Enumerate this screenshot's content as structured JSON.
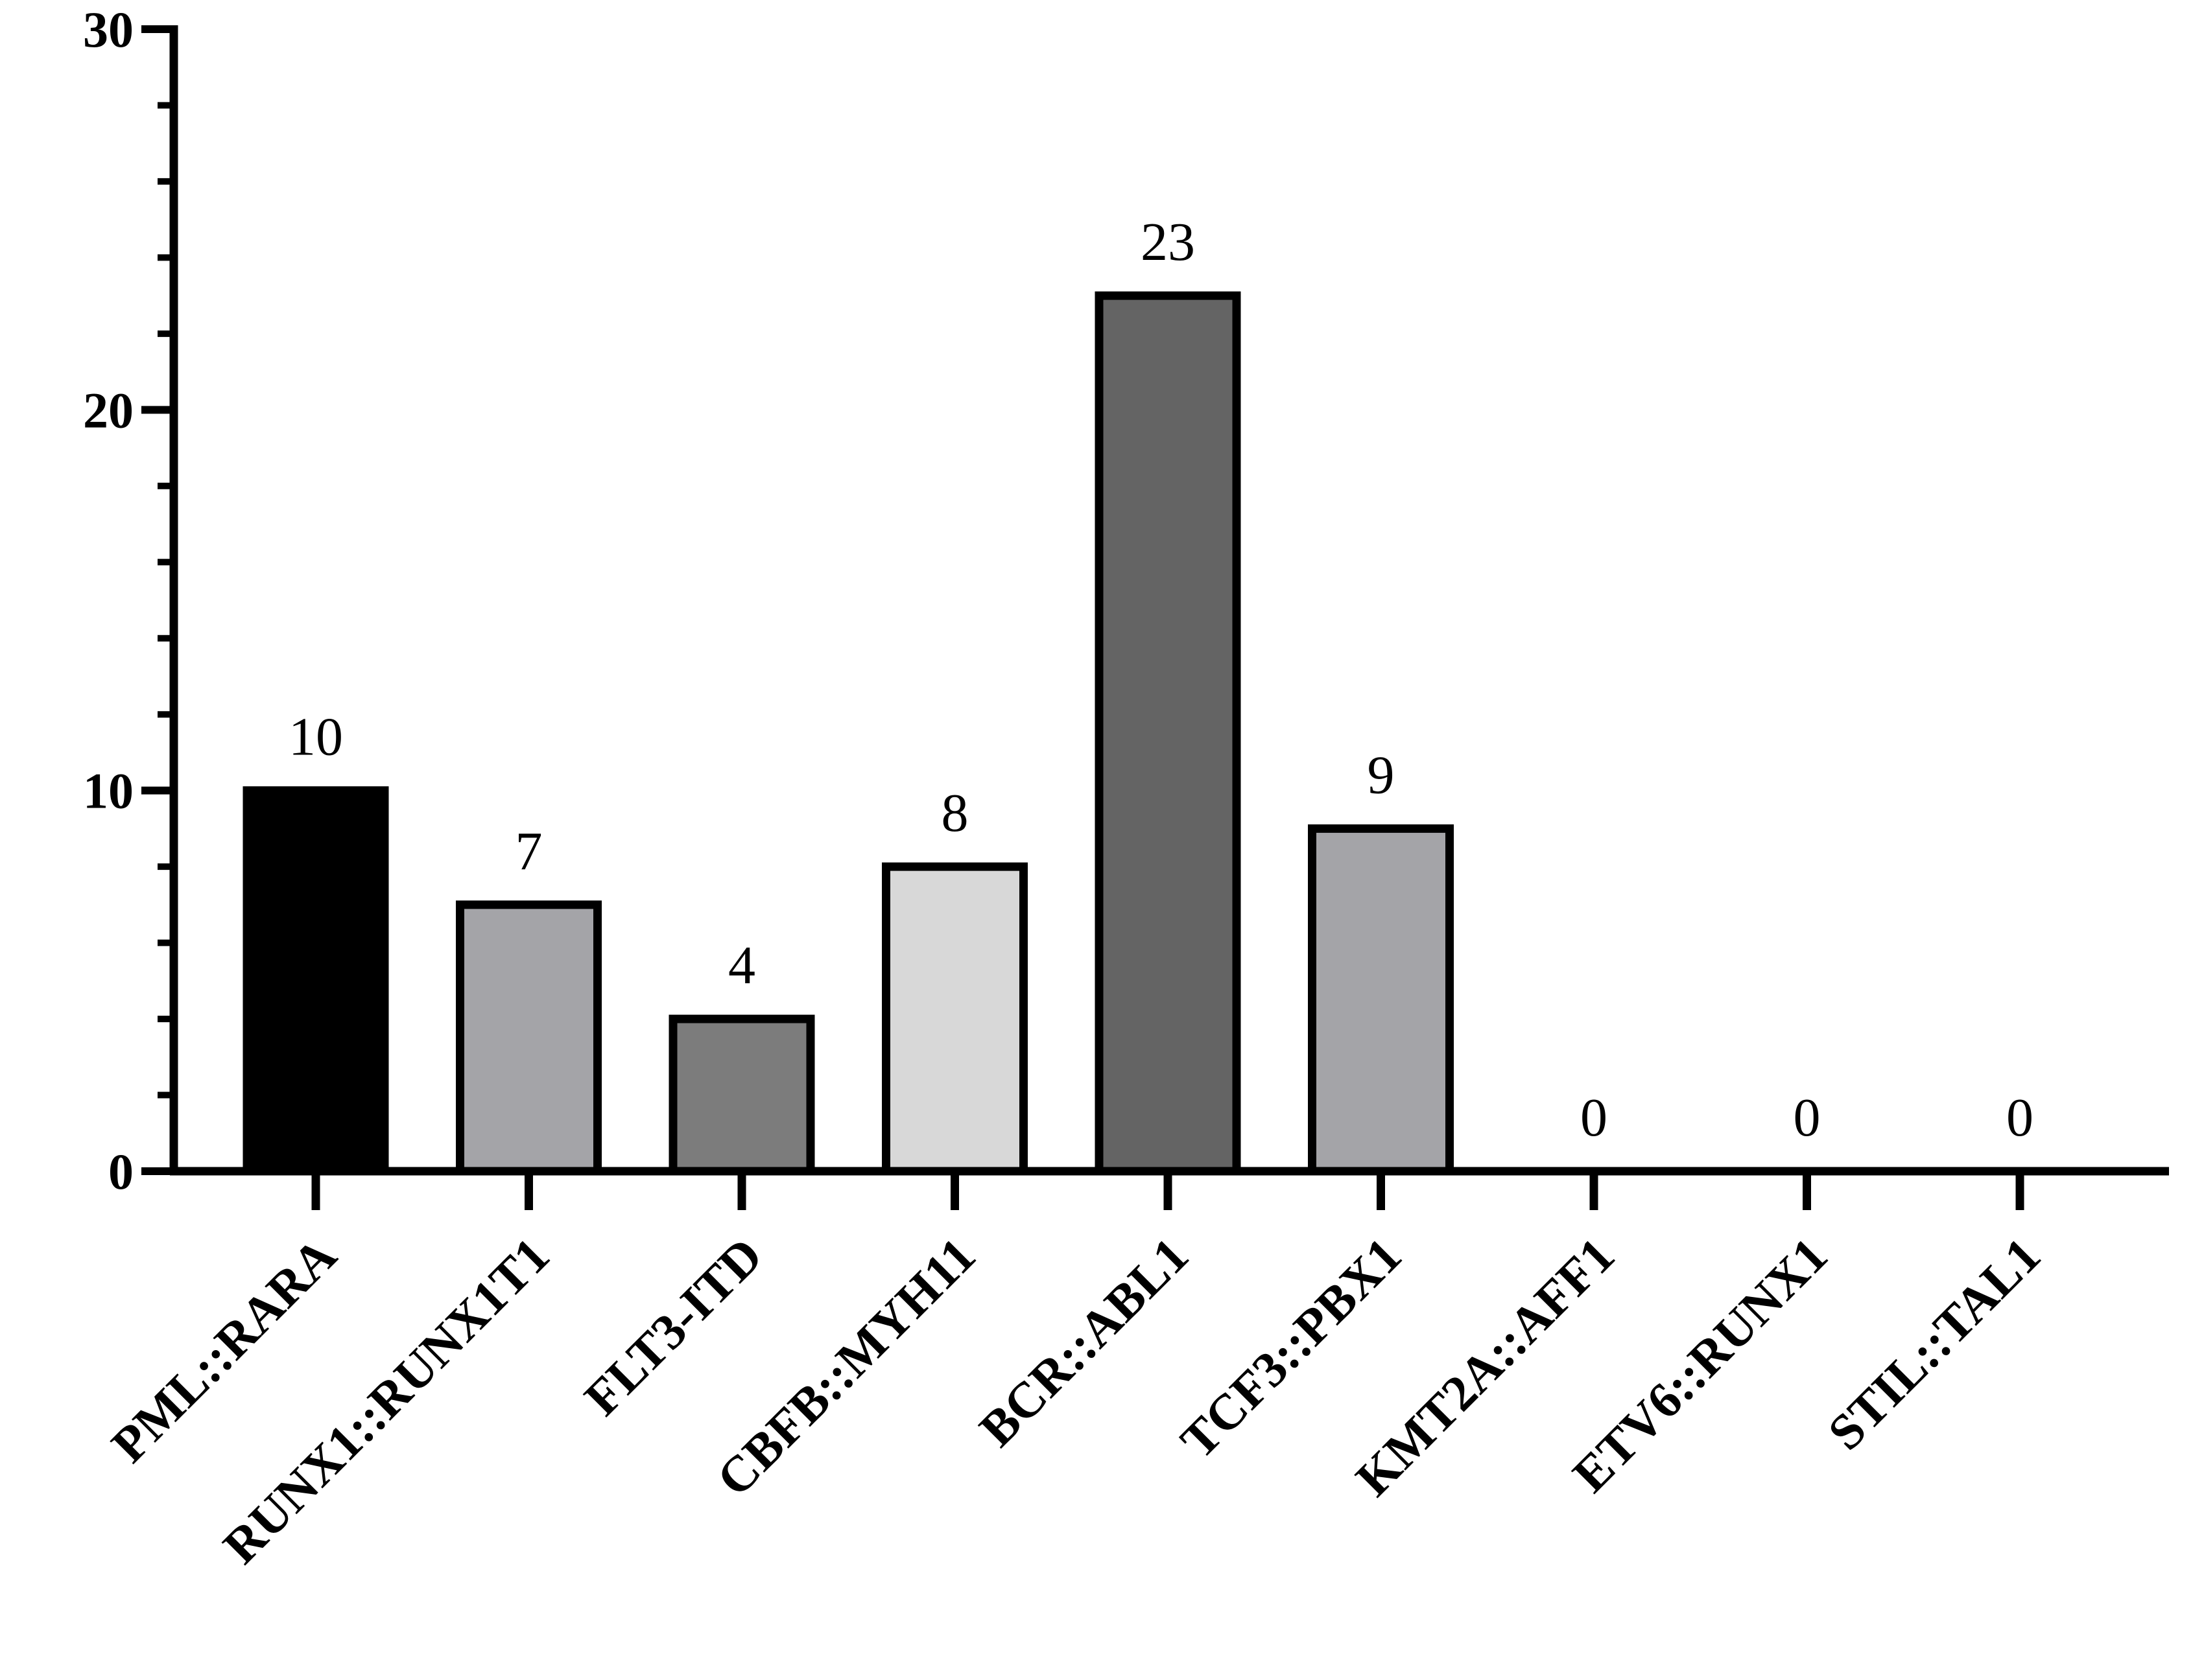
{
  "chart_data": {
    "type": "bar",
    "title": "",
    "xlabel": "",
    "ylabel": "",
    "ylim": [
      0,
      30
    ],
    "yticks": [
      0,
      10,
      20,
      30
    ],
    "y_minor_step": 2,
    "grid": false,
    "legend": "none",
    "categories": [
      "PML::RARA",
      "RUNX1::RUNX1T1",
      "FLT3-ITD",
      "CBFB::MYH11",
      "BCR::ABL1",
      "TCF3::PBX1",
      "KMT2A::AFF1",
      "ETV6::RUNX1",
      "STIL::TAL1"
    ],
    "values": [
      10,
      7,
      4,
      8,
      23,
      9,
      0,
      0,
      0
    ],
    "value_labels": [
      "10",
      "7",
      "4",
      "8",
      "23",
      "9",
      "0",
      "0",
      "0"
    ],
    "bar_colors": [
      "#000000",
      "#a4a4a8",
      "#7c7c7c",
      "#d8d8d8",
      "#646464",
      "#a4a4a8",
      "#ffffff",
      "#ffffff",
      "#ffffff"
    ]
  }
}
